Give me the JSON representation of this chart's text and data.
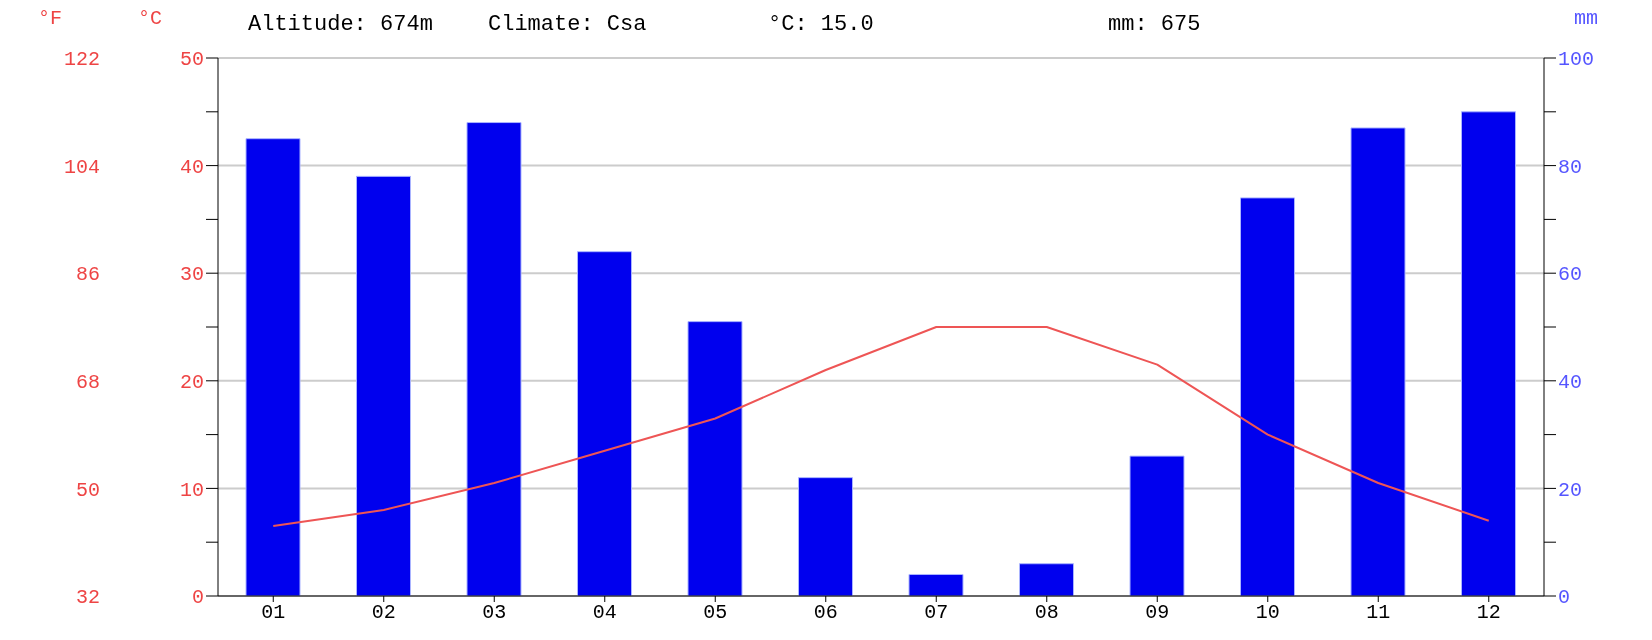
{
  "chart_data": {
    "type": "bar",
    "annotations": [
      "Altitude: 674m",
      "Climate: Csa",
      "°C: 15.0",
      "mm: 675"
    ],
    "categories": [
      "01",
      "02",
      "03",
      "04",
      "05",
      "06",
      "07",
      "08",
      "09",
      "10",
      "11",
      "12"
    ],
    "series": [
      {
        "color": "#0000ee",
        "axis": "y2",
        "values": [
          85,
          78,
          88,
          64,
          51,
          22,
          4,
          6,
          26,
          74,
          87,
          90
        ]
      },
      {
        "type": "line",
        "color": "#ee5555",
        "values": [
          6.5,
          8,
          10.5,
          13.5,
          16.5,
          21,
          25,
          25,
          21.5,
          15,
          10.5,
          7
        ]
      }
    ],
    "ylabel": "°C",
    "ylim": [
      0,
      50
    ],
    "yticks": [
      0,
      {
        "value": 5,
        "label": null
      },
      10,
      {
        "value": 15,
        "label": null
      },
      20,
      {
        "value": 25,
        "label": null
      },
      30,
      {
        "value": 35,
        "label": null
      },
      40,
      {
        "value": 45,
        "label": null
      },
      50
    ],
    "y2label": "mm",
    "y2lim": [
      0,
      100
    ],
    "y2ticks": [
      0,
      {
        "value": 10,
        "label": null
      },
      20,
      {
        "value": 30,
        "label": null
      },
      40,
      {
        "value": 50,
        "label": null
      },
      60,
      {
        "value": 70,
        "label": null
      },
      80,
      {
        "value": 90,
        "label": null
      },
      100
    ],
    "y3label": "°F",
    "y3lim": [
      32,
      122
    ],
    "y3ticks": [
      32,
      50,
      68,
      86,
      104,
      122
    ],
    "grid": "y",
    "legend": false,
    "marker": "none",
    "line_style": "solid"
  }
}
